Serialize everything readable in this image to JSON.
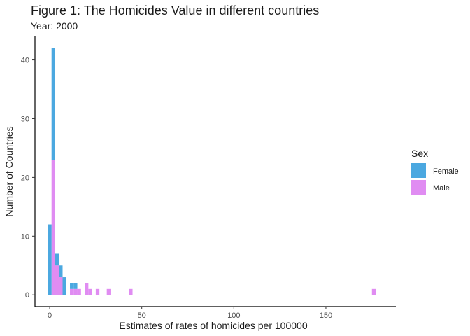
{
  "chart_data": {
    "type": "bar",
    "subtype": "stacked-histogram",
    "title": "Figure 1: The Homicides Value in different countries",
    "subtitle": "Year: 2000",
    "xlabel": "Estimates of rates of homicides per 100000",
    "ylabel": "Number of Countries",
    "xlim": [
      -8,
      188
    ],
    "ylim": [
      -2,
      44
    ],
    "bin_width": 2,
    "x_ticks": [
      "0",
      "50",
      "100",
      "150"
    ],
    "y_ticks": [
      "0",
      "10",
      "20",
      "30",
      "40"
    ],
    "grid": false,
    "legend_position": "right",
    "legend_title": "Sex",
    "series": [
      {
        "name": "Female",
        "color": "#4ba8e0",
        "bins": [
          {
            "x": 0,
            "count": 12
          },
          {
            "x": 2,
            "count": 19
          },
          {
            "x": 4,
            "count": 2
          },
          {
            "x": 6,
            "count": 2
          },
          {
            "x": 8,
            "count": 3
          },
          {
            "x": 12,
            "count": 1
          },
          {
            "x": 14,
            "count": 1
          }
        ]
      },
      {
        "name": "Male",
        "color": "#e08cf2",
        "bins": [
          {
            "x": 2,
            "count": 23
          },
          {
            "x": 4,
            "count": 5
          },
          {
            "x": 6,
            "count": 3
          },
          {
            "x": 12,
            "count": 1
          },
          {
            "x": 14,
            "count": 1
          },
          {
            "x": 16,
            "count": 1
          },
          {
            "x": 20,
            "count": 2
          },
          {
            "x": 22,
            "count": 1
          },
          {
            "x": 26,
            "count": 1
          },
          {
            "x": 32,
            "count": 1
          },
          {
            "x": 44,
            "count": 1
          },
          {
            "x": 176,
            "count": 1
          }
        ]
      }
    ]
  }
}
